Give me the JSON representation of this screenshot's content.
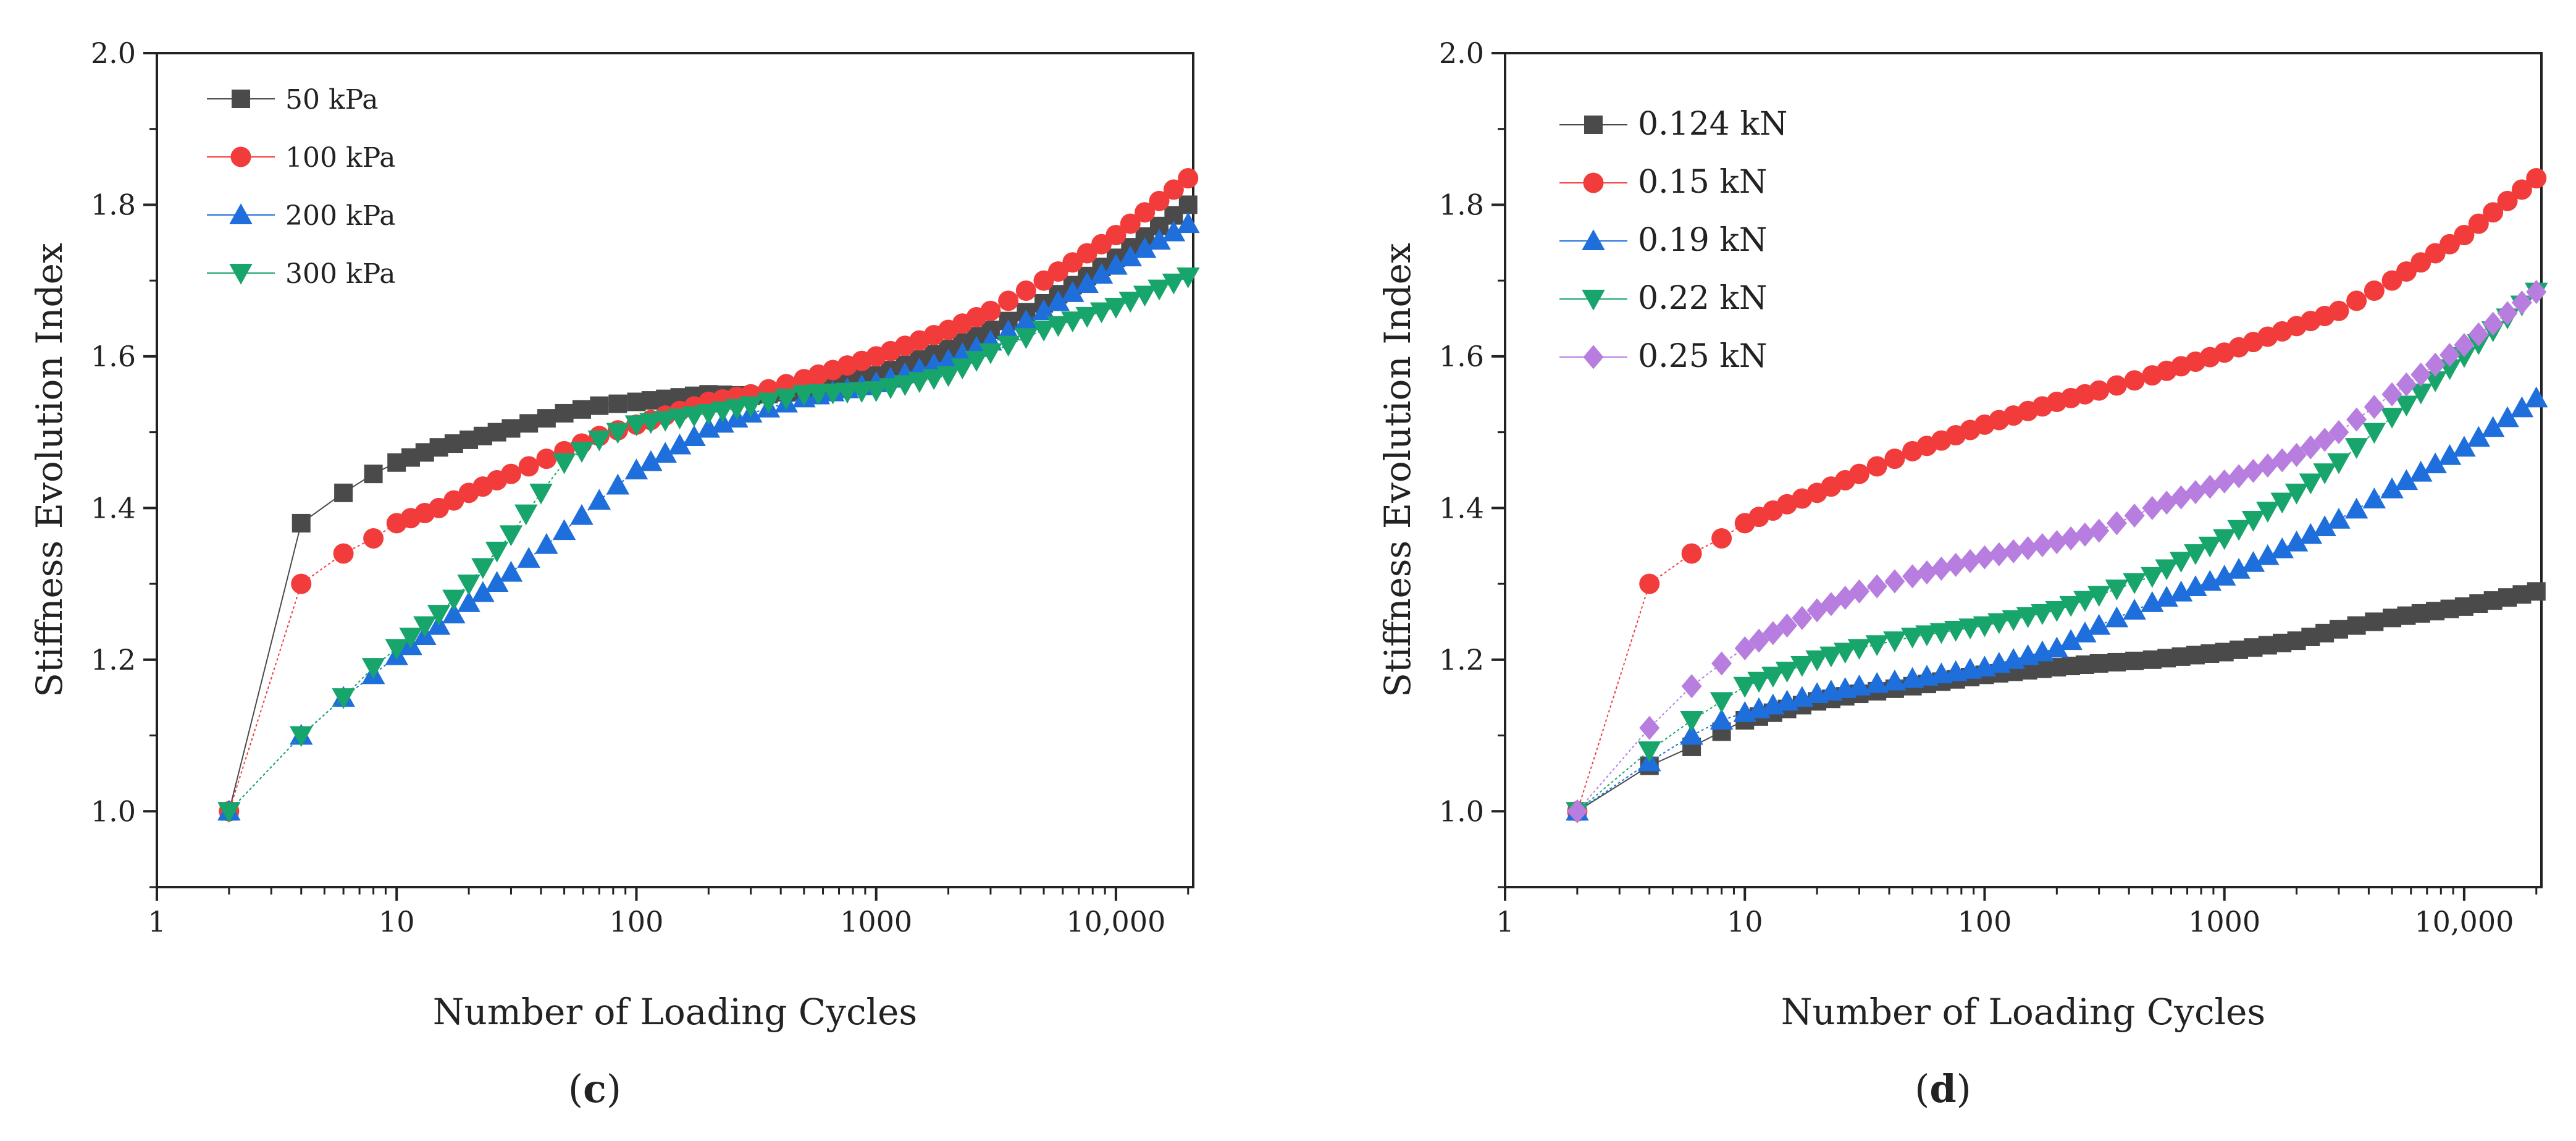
{
  "chart_data": [
    {
      "id": "c",
      "type": "scatter",
      "subtitle_label": "(c)",
      "subtitle_letter": "c",
      "xlabel": "Number of Loading Cycles",
      "ylabel": "Stiffness Evolution Index",
      "x_scale": "log",
      "xlim": [
        1,
        21000
      ],
      "ylim": [
        0.9,
        2.0
      ],
      "x_ticks": [
        1,
        10,
        100,
        1000,
        10000
      ],
      "x_tick_labels": [
        "1",
        "10",
        "100",
        "1000",
        "10,000"
      ],
      "y_ticks": [
        1.0,
        1.2,
        1.4,
        1.6,
        1.8,
        2.0
      ],
      "y_tick_labels": [
        "1.0",
        "1.2",
        "1.4",
        "1.6",
        "1.8",
        "2.0"
      ],
      "legend_position": "top-left",
      "series": [
        {
          "name": "50 kPa",
          "color": "#4a4a4a",
          "marker": "square",
          "x": [
            2,
            4,
            6,
            8,
            10,
            15,
            20,
            30,
            50,
            70,
            100,
            200,
            300,
            500,
            1000,
            2000,
            3000,
            5000,
            10000,
            20000
          ],
          "y": [
            1.0,
            1.38,
            1.42,
            1.445,
            1.46,
            1.48,
            1.49,
            1.505,
            1.525,
            1.535,
            1.54,
            1.55,
            1.548,
            1.555,
            1.575,
            1.61,
            1.635,
            1.67,
            1.73,
            1.8
          ]
        },
        {
          "name": "100 kPa",
          "color": "#f23c3c",
          "marker": "circle",
          "x": [
            2,
            4,
            6,
            8,
            10,
            15,
            20,
            30,
            50,
            70,
            100,
            200,
            300,
            500,
            1000,
            2000,
            3000,
            5000,
            10000,
            20000
          ],
          "y": [
            1.0,
            1.3,
            1.34,
            1.36,
            1.38,
            1.4,
            1.42,
            1.445,
            1.475,
            1.495,
            1.51,
            1.54,
            1.55,
            1.57,
            1.6,
            1.635,
            1.66,
            1.7,
            1.76,
            1.835
          ]
        },
        {
          "name": "200 kPa",
          "color": "#1e6fdc",
          "marker": "triangle-up",
          "x": [
            2,
            4,
            6,
            8,
            10,
            15,
            20,
            30,
            50,
            70,
            100,
            200,
            300,
            500,
            1000,
            2000,
            3000,
            5000,
            10000,
            20000
          ],
          "y": [
            1.0,
            1.1,
            1.15,
            1.18,
            1.205,
            1.245,
            1.275,
            1.315,
            1.37,
            1.41,
            1.45,
            1.505,
            1.525,
            1.545,
            1.565,
            1.595,
            1.62,
            1.66,
            1.72,
            1.775
          ]
        },
        {
          "name": "300 kPa",
          "color": "#18a56b",
          "marker": "triangle-down",
          "x": [
            2,
            4,
            6,
            8,
            10,
            15,
            20,
            30,
            40,
            50,
            70,
            100,
            200,
            300,
            500,
            1000,
            2000,
            3000,
            5000,
            10000,
            20000
          ],
          "y": [
            1.0,
            1.1,
            1.15,
            1.19,
            1.215,
            1.26,
            1.3,
            1.365,
            1.42,
            1.46,
            1.49,
            1.51,
            1.525,
            1.535,
            1.55,
            1.555,
            1.575,
            1.605,
            1.635,
            1.665,
            1.705
          ]
        }
      ]
    },
    {
      "id": "d",
      "type": "scatter",
      "subtitle_label": "(d)",
      "subtitle_letter": "d",
      "xlabel": "Number of Loading Cycles",
      "ylabel": "Stiffness Evolution Index",
      "x_scale": "log",
      "xlim": [
        1,
        21000
      ],
      "ylim": [
        0.9,
        2.0
      ],
      "x_ticks": [
        1,
        10,
        100,
        1000,
        10000
      ],
      "x_tick_labels": [
        "1",
        "10",
        "100",
        "1000",
        "10,000"
      ],
      "y_ticks": [
        1.0,
        1.2,
        1.4,
        1.6,
        1.8,
        2.0
      ],
      "y_tick_labels": [
        "1.0",
        "1.2",
        "1.4",
        "1.6",
        "1.8",
        "2.0"
      ],
      "legend_position": "top-left",
      "series": [
        {
          "name": "0.124 kN",
          "color": "#4a4a4a",
          "marker": "square",
          "x": [
            2,
            4,
            6,
            8,
            10,
            15,
            20,
            30,
            50,
            100,
            200,
            300,
            500,
            1000,
            2000,
            3000,
            5000,
            10000,
            20000
          ],
          "y": [
            1.0,
            1.06,
            1.085,
            1.105,
            1.12,
            1.135,
            1.145,
            1.155,
            1.165,
            1.18,
            1.19,
            1.195,
            1.2,
            1.21,
            1.225,
            1.24,
            1.255,
            1.27,
            1.29
          ]
        },
        {
          "name": "0.15 kN",
          "color": "#f23c3c",
          "marker": "circle",
          "x": [
            2,
            4,
            6,
            8,
            10,
            15,
            20,
            30,
            50,
            100,
            200,
            300,
            500,
            1000,
            2000,
            3000,
            5000,
            10000,
            20000
          ],
          "y": [
            1.0,
            1.3,
            1.34,
            1.36,
            1.38,
            1.405,
            1.42,
            1.445,
            1.475,
            1.51,
            1.54,
            1.555,
            1.575,
            1.605,
            1.64,
            1.66,
            1.7,
            1.76,
            1.835
          ]
        },
        {
          "name": "0.19 kN",
          "color": "#1e6fdc",
          "marker": "triangle-up",
          "x": [
            2,
            4,
            6,
            8,
            10,
            15,
            20,
            30,
            50,
            100,
            200,
            300,
            500,
            1000,
            2000,
            3000,
            5000,
            10000,
            20000
          ],
          "y": [
            1.0,
            1.065,
            1.1,
            1.12,
            1.13,
            1.145,
            1.155,
            1.165,
            1.175,
            1.19,
            1.215,
            1.245,
            1.275,
            1.31,
            1.355,
            1.385,
            1.425,
            1.48,
            1.545
          ]
        },
        {
          "name": "0.22 kN",
          "color": "#18a56b",
          "marker": "triangle-down",
          "x": [
            2,
            4,
            6,
            8,
            10,
            15,
            20,
            30,
            50,
            100,
            200,
            300,
            500,
            1000,
            2000,
            3000,
            5000,
            10000,
            20000
          ],
          "y": [
            1.0,
            1.08,
            1.12,
            1.145,
            1.165,
            1.185,
            1.2,
            1.215,
            1.23,
            1.245,
            1.265,
            1.285,
            1.31,
            1.36,
            1.42,
            1.46,
            1.52,
            1.6,
            1.685
          ]
        },
        {
          "name": "0.25 kN",
          "color": "#b77ee0",
          "marker": "diamond",
          "x": [
            2,
            4,
            6,
            8,
            10,
            15,
            20,
            30,
            50,
            100,
            200,
            300,
            500,
            1000,
            2000,
            3000,
            5000,
            10000,
            20000
          ],
          "y": [
            1.0,
            1.11,
            1.165,
            1.195,
            1.215,
            1.245,
            1.265,
            1.29,
            1.31,
            1.335,
            1.355,
            1.37,
            1.4,
            1.435,
            1.47,
            1.5,
            1.55,
            1.615,
            1.685
          ]
        }
      ]
    }
  ]
}
